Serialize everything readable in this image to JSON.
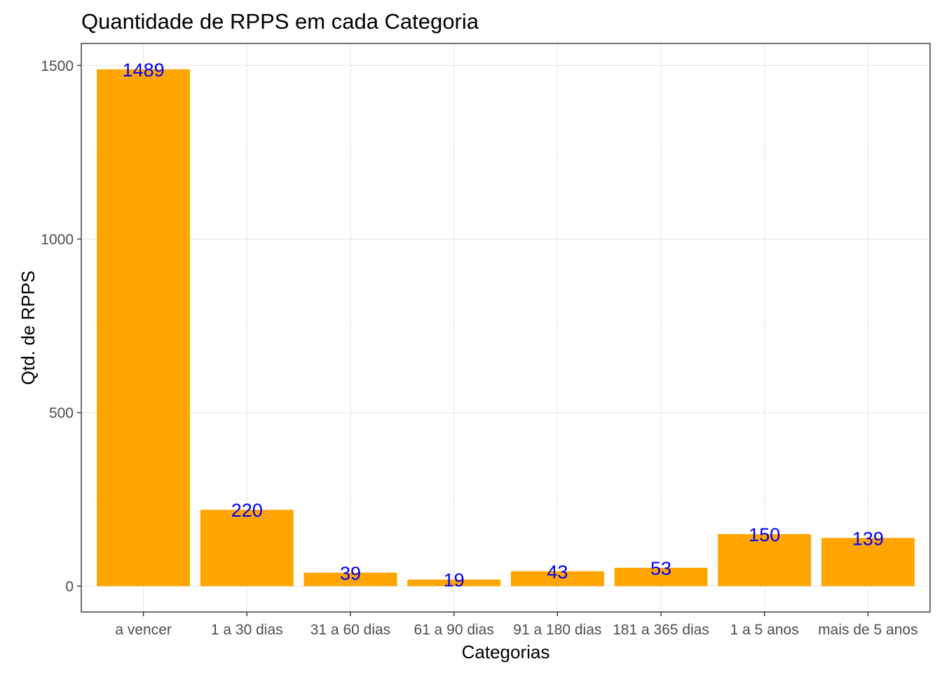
{
  "chart_data": {
    "type": "bar",
    "title": "Quantidade de RPPS em cada Categoria",
    "xlabel": "Categorias",
    "ylabel": "Qtd. de RPPS",
    "categories": [
      "a vencer",
      "1 a 30 dias",
      "31 a 60 dias",
      "61 a 90 dias",
      "91 a 180 dias",
      "181 a 365 dias",
      "1 a 5 anos",
      "mais de 5 anos"
    ],
    "values": [
      1489,
      220,
      39,
      19,
      43,
      53,
      150,
      139
    ],
    "ylim": [
      -74.45,
      1563.45
    ],
    "yticks": [
      0,
      500,
      1000,
      1500
    ],
    "yticks_minor": [
      250,
      750,
      1250
    ],
    "grid": true,
    "legend": "none",
    "bar_color": "#FFA500",
    "label_color": "#0000FF",
    "panel_border_color": "#333333",
    "grid_color": "#EBEBEB"
  }
}
